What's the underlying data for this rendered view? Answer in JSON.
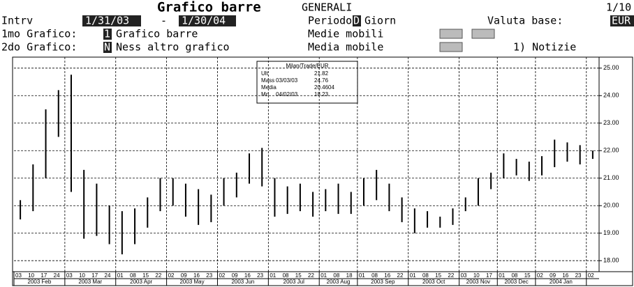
{
  "header": {
    "title": "Grafico barre",
    "security": "GENERALI",
    "page": "1/10",
    "interval_label": "Intrv",
    "start_date": "1/31/03",
    "dash": "-",
    "end_date": "1/30/04",
    "period_label": "Periodo",
    "period_code": "D",
    "period_value": "Giorn",
    "currency_label": "Valuta base:",
    "currency": "EUR",
    "chart1_label": "1mo Grafico:",
    "chart1_code": "1",
    "chart1_value": "Grafico barre",
    "moving_avgs_label": "Medie mobili",
    "chart2_label": "2do Grafico:",
    "chart2_code": "N",
    "chart2_value": "Ness altro grafico",
    "moving_avg_label": "Media mobile",
    "news": "1) Notizie"
  },
  "chart_data": {
    "type": "hlbar",
    "color": "#000000",
    "grid": true,
    "legend": {
      "title": "Milan/Trade/EUR",
      "rows": [
        [
          "Ult",
          "",
          "21.82"
        ],
        [
          "Mass",
          "03/03/03",
          "24.76"
        ],
        [
          "Media",
          "",
          "20.4604"
        ],
        [
          "Mn",
          "04/02/03",
          "18.23"
        ]
      ]
    },
    "ylim": [
      17.6,
      25.4
    ],
    "yticks": [
      {
        "value": 18,
        "label": "18.00"
      },
      {
        "value": 19,
        "label": "19.00"
      },
      {
        "value": 20,
        "label": "20.00"
      },
      {
        "value": 21,
        "label": "21.00"
      },
      {
        "value": 22,
        "label": "22.00"
      },
      {
        "value": 23,
        "label": "23.00"
      },
      {
        "value": 24,
        "label": "24.00"
      },
      {
        "value": 25,
        "label": "25.00"
      }
    ],
    "months": [
      {
        "label": "2003 Feb",
        "days": [
          "03",
          "10",
          "17",
          "24"
        ],
        "high": [
          20.2,
          21.5,
          23.5,
          24.2
        ],
        "low": [
          19.5,
          19.8,
          21.0,
          22.5
        ]
      },
      {
        "label": "2003 Mar",
        "days": [
          "03",
          "10",
          "17",
          "24"
        ],
        "high": [
          24.76,
          21.3,
          20.8,
          20.0
        ],
        "low": [
          20.5,
          18.8,
          18.9,
          18.6
        ]
      },
      {
        "label": "2003 Apr",
        "days": [
          "01",
          "08",
          "15",
          "22"
        ],
        "high": [
          19.8,
          19.9,
          20.3,
          21.0
        ],
        "low": [
          18.23,
          18.6,
          19.2,
          19.8
        ]
      },
      {
        "label": "2003 May",
        "days": [
          "02",
          "09",
          "16",
          "23"
        ],
        "high": [
          21.0,
          20.8,
          20.6,
          20.4
        ],
        "low": [
          20.0,
          19.6,
          19.3,
          19.4
        ]
      },
      {
        "label": "2003 Jun",
        "days": [
          "02",
          "09",
          "16",
          "23"
        ],
        "high": [
          21.0,
          21.2,
          21.9,
          22.1
        ],
        "low": [
          20.0,
          20.3,
          20.8,
          20.7
        ]
      },
      {
        "label": "2003 Jul",
        "days": [
          "01",
          "08",
          "15",
          "22"
        ],
        "high": [
          21.0,
          20.7,
          20.8,
          20.5
        ],
        "low": [
          19.6,
          19.7,
          19.8,
          19.6
        ]
      },
      {
        "label": "2003 Aug",
        "days": [
          "01",
          "08",
          "18"
        ],
        "high": [
          20.6,
          20.8,
          20.5
        ],
        "low": [
          19.8,
          19.7,
          19.7
        ]
      },
      {
        "label": "2003 Sep",
        "days": [
          "01",
          "08",
          "16",
          "22"
        ],
        "high": [
          21.0,
          21.3,
          20.8,
          20.3
        ],
        "low": [
          20.0,
          20.2,
          19.8,
          19.4
        ]
      },
      {
        "label": "2003 Oct",
        "days": [
          "01",
          "08",
          "15",
          "22"
        ],
        "high": [
          19.9,
          19.8,
          19.6,
          19.9
        ],
        "low": [
          19.0,
          19.2,
          19.2,
          19.3
        ]
      },
      {
        "label": "2003 Nov",
        "days": [
          "03",
          "10",
          "17"
        ],
        "high": [
          20.3,
          21.0,
          21.2
        ],
        "low": [
          19.8,
          20.0,
          20.6
        ]
      },
      {
        "label": "2003 Dec",
        "days": [
          "01",
          "08",
          "15"
        ],
        "high": [
          21.9,
          21.7,
          21.6
        ],
        "low": [
          21.0,
          21.1,
          20.9
        ]
      },
      {
        "label": "2004 Jan",
        "days": [
          "02",
          "09",
          "16",
          "23"
        ],
        "high": [
          21.8,
          22.4,
          22.3,
          22.2
        ],
        "low": [
          21.1,
          21.4,
          21.6,
          21.5
        ]
      },
      {
        "label": "",
        "days": [
          "02"
        ],
        "high": [
          22.0
        ],
        "low": [
          21.7
        ]
      }
    ]
  }
}
